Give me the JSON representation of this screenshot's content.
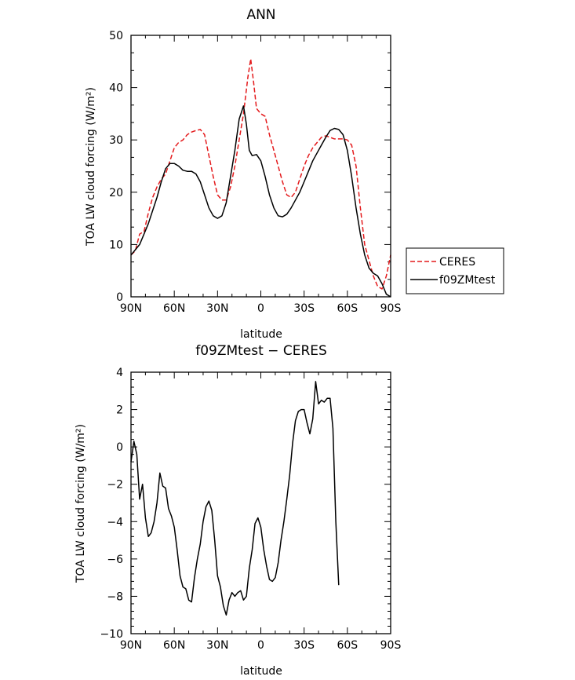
{
  "chart_data": [
    {
      "type": "line",
      "title": "ANN",
      "xlabel": "latitude",
      "ylabel": "TOA LW cloud forcing (W/m²)",
      "xlim": [
        90,
        -90
      ],
      "ylim": [
        0,
        50
      ],
      "x_tick_values": [
        90,
        60,
        30,
        0,
        -30,
        -60,
        -90
      ],
      "x_tick_labels": [
        "90N",
        "60N",
        "30N",
        "0",
        "30S",
        "60S",
        "90S"
      ],
      "y_tick_values": [
        0,
        10,
        20,
        30,
        40,
        50
      ],
      "y_tick_labels": [
        "0",
        "10",
        "20",
        "30",
        "40",
        "50"
      ],
      "legend_position": "right",
      "series": [
        {
          "name": "CERES",
          "color": "#e41a1c",
          "dash": "dashed",
          "points": [
            [
              90,
              8
            ],
            [
              87,
              8.8
            ],
            [
              84,
              12
            ],
            [
              81,
              12.5
            ],
            [
              78,
              16
            ],
            [
              75,
              19
            ],
            [
              72,
              21
            ],
            [
              69,
              22.5
            ],
            [
              66,
              23.5
            ],
            [
              63,
              26
            ],
            [
              60,
              28.5
            ],
            [
              57,
              29.5
            ],
            [
              54,
              30
            ],
            [
              51,
              31
            ],
            [
              48,
              31.5
            ],
            [
              45,
              31.8
            ],
            [
              42,
              32
            ],
            [
              39,
              31
            ],
            [
              36,
              27
            ],
            [
              33,
              23
            ],
            [
              30,
              19.5
            ],
            [
              27,
              18.5
            ],
            [
              24,
              18.5
            ],
            [
              21,
              21
            ],
            [
              18,
              25
            ],
            [
              15,
              30
            ],
            [
              12,
              35
            ],
            [
              9,
              42
            ],
            [
              7,
              45.5
            ],
            [
              5,
              41
            ],
            [
              3,
              36
            ],
            [
              0,
              35
            ],
            [
              -3,
              34.5
            ],
            [
              -6,
              31
            ],
            [
              -9,
              28
            ],
            [
              -12,
              25
            ],
            [
              -15,
              22
            ],
            [
              -18,
              19.5
            ],
            [
              -21,
              19
            ],
            [
              -24,
              20
            ],
            [
              -27,
              22.5
            ],
            [
              -30,
              25
            ],
            [
              -33,
              27
            ],
            [
              -36,
              28.5
            ],
            [
              -39,
              29.5
            ],
            [
              -42,
              30.5
            ],
            [
              -45,
              30.8
            ],
            [
              -48,
              30.5
            ],
            [
              -51,
              30.2
            ],
            [
              -54,
              30.2
            ],
            [
              -57,
              30.2
            ],
            [
              -60,
              30
            ],
            [
              -63,
              29
            ],
            [
              -66,
              25
            ],
            [
              -69,
              17
            ],
            [
              -72,
              10
            ],
            [
              -75,
              7
            ],
            [
              -78,
              4
            ],
            [
              -81,
              2
            ],
            [
              -84,
              1.5
            ],
            [
              -87,
              4
            ],
            [
              -90,
              8
            ]
          ]
        },
        {
          "name": "f09ZMtest",
          "color": "#000000",
          "dash": "solid",
          "points": [
            [
              90,
              8
            ],
            [
              87,
              9
            ],
            [
              84,
              10
            ],
            [
              81,
              12
            ],
            [
              78,
              14
            ],
            [
              75,
              16.5
            ],
            [
              72,
              19
            ],
            [
              69,
              22
            ],
            [
              66,
              24.5
            ],
            [
              63,
              25.5
            ],
            [
              60,
              25.5
            ],
            [
              57,
              25
            ],
            [
              54,
              24.2
            ],
            [
              51,
              24
            ],
            [
              48,
              24
            ],
            [
              45,
              23.5
            ],
            [
              42,
              22
            ],
            [
              39,
              19.5
            ],
            [
              36,
              17
            ],
            [
              33,
              15.5
            ],
            [
              30,
              15
            ],
            [
              27,
              15.5
            ],
            [
              24,
              18
            ],
            [
              21,
              23
            ],
            [
              18,
              28
            ],
            [
              15,
              34
            ],
            [
              12,
              36.5
            ],
            [
              10,
              33
            ],
            [
              8,
              28
            ],
            [
              6,
              27
            ],
            [
              3,
              27.2
            ],
            [
              0,
              26
            ],
            [
              -3,
              23
            ],
            [
              -6,
              19.5
            ],
            [
              -9,
              17
            ],
            [
              -12,
              15.5
            ],
            [
              -15,
              15.3
            ],
            [
              -18,
              15.8
            ],
            [
              -21,
              17
            ],
            [
              -24,
              18.5
            ],
            [
              -27,
              20
            ],
            [
              -30,
              22
            ],
            [
              -33,
              24
            ],
            [
              -36,
              26
            ],
            [
              -39,
              27.5
            ],
            [
              -42,
              29
            ],
            [
              -45,
              30.5
            ],
            [
              -48,
              31.8
            ],
            [
              -51,
              32.2
            ],
            [
              -54,
              32
            ],
            [
              -57,
              31
            ],
            [
              -60,
              28
            ],
            [
              -63,
              23
            ],
            [
              -66,
              17
            ],
            [
              -69,
              12
            ],
            [
              -72,
              8
            ],
            [
              -75,
              5.5
            ],
            [
              -78,
              4.5
            ],
            [
              -81,
              4
            ],
            [
              -84,
              2.5
            ],
            [
              -87,
              0.5
            ],
            [
              -90,
              0
            ]
          ]
        }
      ]
    },
    {
      "type": "line",
      "title": "f09ZMtest − CERES",
      "xlabel": "latitude",
      "ylabel": "TOA LW cloud forcing (W/m²)",
      "xlim": [
        90,
        -90
      ],
      "ylim": [
        -10,
        4
      ],
      "x_tick_values": [
        90,
        60,
        30,
        0,
        -30,
        -60,
        -90
      ],
      "x_tick_labels": [
        "90N",
        "60N",
        "30N",
        "0",
        "30S",
        "60S",
        "90S"
      ],
      "y_tick_values": [
        -10,
        -8,
        -6,
        -4,
        -2,
        0,
        2,
        4
      ],
      "y_tick_labels": [
        "−10",
        "−8",
        "−6",
        "−4",
        "−2",
        "0",
        "2",
        "4"
      ],
      "series": [
        {
          "color": "#000000",
          "dash": "solid",
          "points": [
            [
              90,
              -0.8
            ],
            [
              88,
              0.3
            ],
            [
              86,
              -0.4
            ],
            [
              84,
              -2.8
            ],
            [
              82,
              -2
            ],
            [
              80,
              -3.8
            ],
            [
              78,
              -4.8
            ],
            [
              76,
              -4.6
            ],
            [
              74,
              -4
            ],
            [
              72,
              -3
            ],
            [
              70,
              -1.4
            ],
            [
              68,
              -2.1
            ],
            [
              66,
              -2.2
            ],
            [
              64,
              -3.3
            ],
            [
              62,
              -3.7
            ],
            [
              60,
              -4.3
            ],
            [
              58,
              -5.5
            ],
            [
              56,
              -6.9
            ],
            [
              54,
              -7.5
            ],
            [
              52,
              -7.6
            ],
            [
              50,
              -8.2
            ],
            [
              48,
              -8.3
            ],
            [
              46,
              -7
            ],
            [
              44,
              -6
            ],
            [
              42,
              -5.2
            ],
            [
              40,
              -4
            ],
            [
              38,
              -3.2
            ],
            [
              36,
              -2.9
            ],
            [
              34,
              -3.4
            ],
            [
              32,
              -5
            ],
            [
              30,
              -6.9
            ],
            [
              28,
              -7.5
            ],
            [
              26,
              -8.5
            ],
            [
              24,
              -9
            ],
            [
              22,
              -8.2
            ],
            [
              20,
              -7.8
            ],
            [
              18,
              -8
            ],
            [
              16,
              -7.8
            ],
            [
              14,
              -7.7
            ],
            [
              12,
              -8.2
            ],
            [
              10,
              -8
            ],
            [
              8,
              -6.5
            ],
            [
              6,
              -5.5
            ],
            [
              4,
              -4.1
            ],
            [
              2,
              -3.8
            ],
            [
              0,
              -4.3
            ],
            [
              -2,
              -5.5
            ],
            [
              -4,
              -6.4
            ],
            [
              -6,
              -7.1
            ],
            [
              -8,
              -7.2
            ],
            [
              -10,
              -7
            ],
            [
              -12,
              -6.2
            ],
            [
              -14,
              -5
            ],
            [
              -16,
              -4
            ],
            [
              -18,
              -2.8
            ],
            [
              -20,
              -1.5
            ],
            [
              -22,
              0.2
            ],
            [
              -24,
              1.4
            ],
            [
              -26,
              1.9
            ],
            [
              -28,
              2
            ],
            [
              -30,
              2
            ],
            [
              -32,
              1.3
            ],
            [
              -34,
              0.7
            ],
            [
              -36,
              1.5
            ],
            [
              -38,
              3.5
            ],
            [
              -40,
              2.3
            ],
            [
              -42,
              2.5
            ],
            [
              -44,
              2.4
            ],
            [
              -46,
              2.6
            ],
            [
              -48,
              2.6
            ],
            [
              -50,
              1
            ],
            [
              -52,
              -4
            ],
            [
              -54,
              -7.4
            ]
          ]
        }
      ]
    }
  ]
}
